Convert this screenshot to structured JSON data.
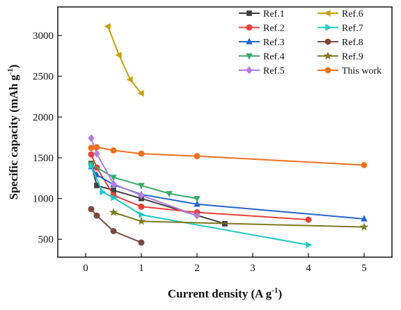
{
  "chart_data": {
    "type": "line",
    "xlabel": "Current density (A g",
    "xlabel_sup": "-1",
    "xlabel_end": ")",
    "ylabel": "Specific capacity (mAh g",
    "ylabel_sup": "-1",
    "ylabel_end": ")",
    "xlim": [
      -0.5,
      5.5
    ],
    "ylim": [
      280,
      3350
    ],
    "x_ticks": [
      0,
      1,
      2,
      3,
      4,
      5
    ],
    "y_ticks": [
      500,
      1000,
      1500,
      2000,
      2500,
      3000
    ],
    "legend_position": "top-right",
    "grid": false,
    "series": [
      {
        "name": "Ref.1",
        "color": "#404040",
        "marker": "square",
        "x": [
          0.1,
          0.2,
          0.5,
          1,
          2.5
        ],
        "y": [
          1430,
          1160,
          1100,
          1000,
          690
        ]
      },
      {
        "name": "Ref.2",
        "color": "#e8403a",
        "marker": "circle",
        "x": [
          0.1,
          0.2,
          0.5,
          1,
          2,
          4
        ],
        "y": [
          1540,
          1380,
          1040,
          900,
          830,
          740
        ]
      },
      {
        "name": "Ref.3",
        "color": "#2266cc",
        "marker": "triangle-up",
        "x": [
          0.1,
          0.2,
          0.5,
          1,
          2,
          5
        ],
        "y": [
          1390,
          1290,
          1170,
          1050,
          930,
          750
        ]
      },
      {
        "name": "Ref.4",
        "color": "#3aaa6a",
        "marker": "triangle-down",
        "x": [
          0.1,
          0.5,
          1,
          1.5,
          2
        ],
        "y": [
          1420,
          1260,
          1160,
          1060,
          1000
        ]
      },
      {
        "name": "Ref.5",
        "color": "#b57be0",
        "marker": "diamond",
        "x": [
          0.1,
          0.2,
          0.5,
          1,
          2
        ],
        "y": [
          1740,
          1550,
          1180,
          1040,
          790
        ]
      },
      {
        "name": "Ref.6",
        "color": "#c8a010",
        "marker": "triangle-left",
        "x": [
          0.4,
          0.6,
          0.8,
          1
        ],
        "y": [
          3110,
          2760,
          2460,
          2290
        ]
      },
      {
        "name": "Ref.7",
        "color": "#20c8c8",
        "marker": "triangle-right",
        "x": [
          0.1,
          0.3,
          0.5,
          1,
          4
        ],
        "y": [
          1400,
          1080,
          1010,
          800,
          430
        ]
      },
      {
        "name": "Ref.8",
        "color": "#7a4a40",
        "marker": "circle",
        "x": [
          0.1,
          0.2,
          0.5,
          1
        ],
        "y": [
          870,
          790,
          600,
          460
        ]
      },
      {
        "name": "Ref.9",
        "color": "#7a7a20",
        "marker": "star",
        "x": [
          0.5,
          1,
          5
        ],
        "y": [
          830,
          720,
          650
        ]
      },
      {
        "name": "This work",
        "color": "#f07020",
        "marker": "circle",
        "x": [
          0.1,
          0.2,
          0.5,
          1,
          2,
          5
        ],
        "y": [
          1620,
          1630,
          1590,
          1550,
          1520,
          1410
        ]
      }
    ]
  }
}
